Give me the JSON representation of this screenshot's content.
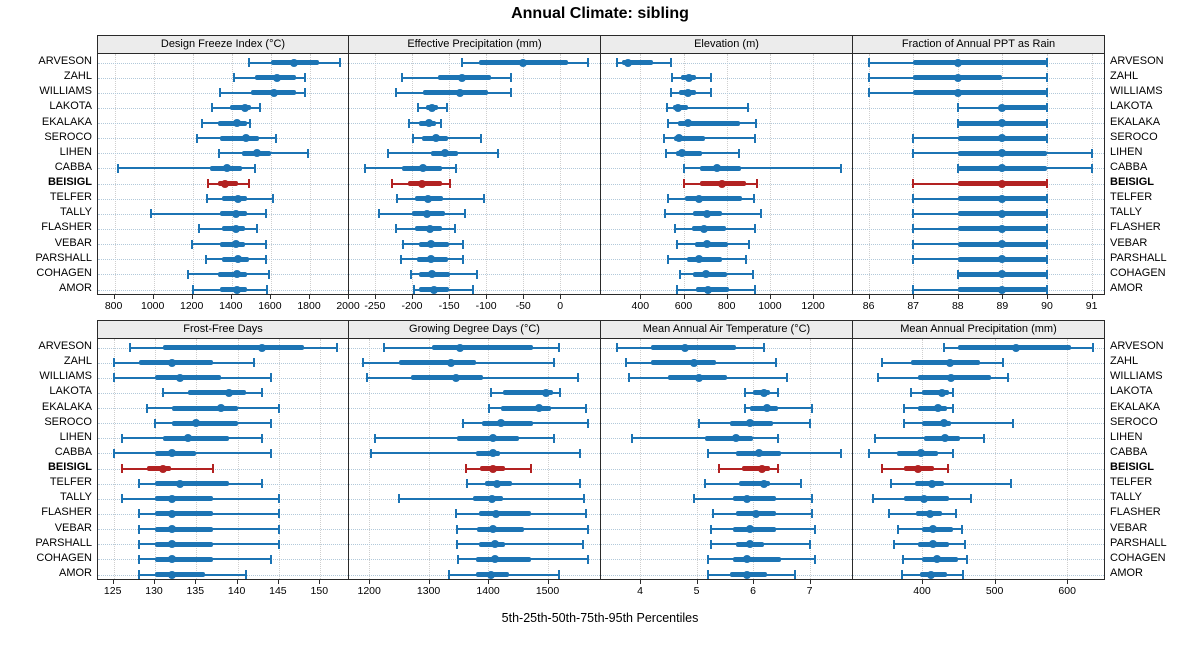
{
  "title": "Annual Climate: sibling",
  "footer_label": "5th-25th-50th-75th-95th Percentiles",
  "colors": {
    "series": "#1c74b4",
    "highlight": "#b22222",
    "strip_bg": "#ececec",
    "panel_border": "#2a2a2a",
    "gridline": "#cfcfcf",
    "row_guide": "#b2c9da"
  },
  "chart_data": {
    "type": "scatter",
    "subtype": "percentile-range-dotplot",
    "title": "Annual Climate: sibling",
    "xlabel": "5th-25th-50th-75th-95th Percentiles",
    "grid": true,
    "legend_position": "none",
    "percentiles": [
      5,
      25,
      50,
      75,
      95
    ],
    "highlight_station": "BEISIGL",
    "stations": [
      "ARVESON",
      "ZAHL",
      "WILLIAMS",
      "LAKOTA",
      "EKALAKA",
      "SEROCO",
      "LIHEN",
      "CABBA",
      "BEISIGL",
      "TELFER",
      "TALLY",
      "FLASHER",
      "VEBAR",
      "PARSHALL",
      "COHAGEN",
      "AMOR"
    ],
    "panels": [
      {
        "title": "Design Freeze Index (°C)",
        "row": 0,
        "col": 0,
        "ticks": [
          800,
          1000,
          1200,
          1400,
          1600,
          1800,
          2000
        ],
        "xlim": [
          715,
          2005
        ],
        "values": [
          [
            1490,
            1600,
            1720,
            1845,
            1955
          ],
          [
            1410,
            1520,
            1630,
            1730,
            1775
          ],
          [
            1340,
            1500,
            1615,
            1730,
            1775
          ],
          [
            1300,
            1390,
            1465,
            1500,
            1545
          ],
          [
            1245,
            1330,
            1425,
            1480,
            1495
          ],
          [
            1220,
            1340,
            1470,
            1540,
            1625
          ],
          [
            1335,
            1450,
            1530,
            1600,
            1790
          ],
          [
            815,
            1290,
            1375,
            1450,
            1520
          ],
          [
            1280,
            1330,
            1365,
            1430,
            1490
          ],
          [
            1275,
            1350,
            1430,
            1480,
            1610
          ],
          [
            985,
            1340,
            1420,
            1480,
            1575
          ],
          [
            1230,
            1350,
            1420,
            1470,
            1530
          ],
          [
            1195,
            1340,
            1420,
            1470,
            1575
          ],
          [
            1270,
            1350,
            1430,
            1490,
            1575
          ],
          [
            1175,
            1330,
            1425,
            1480,
            1590
          ],
          [
            1200,
            1340,
            1425,
            1480,
            1580
          ]
        ]
      },
      {
        "title": "Effective Precipitation (mm)",
        "row": 0,
        "col": 1,
        "ticks": [
          -250,
          -200,
          -150,
          -100,
          -50,
          0
        ],
        "xlim": [
          -285,
          55
        ],
        "values": [
          [
            -132,
            -110,
            -50,
            10,
            37
          ],
          [
            -214,
            -165,
            -133,
            -93,
            -66
          ],
          [
            -222,
            -185,
            -135,
            -97,
            -67
          ],
          [
            -192,
            -181,
            -173,
            -165,
            -153
          ],
          [
            -204,
            -190,
            -177,
            -168,
            -161
          ],
          [
            -199,
            -186,
            -168,
            -151,
            -107
          ],
          [
            -232,
            -174,
            -156,
            -138,
            -84
          ],
          [
            -263,
            -214,
            -185,
            -160,
            -141
          ],
          [
            -227,
            -206,
            -186,
            -159,
            -149
          ],
          [
            -220,
            -196,
            -178,
            -158,
            -103
          ],
          [
            -245,
            -200,
            -180,
            -155,
            -128
          ],
          [
            -222,
            -196,
            -176,
            -160,
            -142
          ],
          [
            -212,
            -190,
            -174,
            -150,
            -131
          ],
          [
            -215,
            -193,
            -174,
            -152,
            -131
          ],
          [
            -202,
            -190,
            -173,
            -148,
            -113
          ],
          [
            -198,
            -190,
            -171,
            -150,
            -118
          ]
        ]
      },
      {
        "title": "Elevation (m)",
        "row": 0,
        "col": 2,
        "ticks": [
          400,
          600,
          800,
          1000,
          1200
        ],
        "xlim": [
          218,
          1385
        ],
        "values": [
          [
            290,
            315,
            345,
            460,
            540
          ],
          [
            545,
            590,
            625,
            660,
            725
          ],
          [
            540,
            580,
            620,
            660,
            725
          ],
          [
            525,
            550,
            575,
            620,
            900
          ],
          [
            530,
            575,
            620,
            860,
            935
          ],
          [
            510,
            555,
            580,
            700,
            930
          ],
          [
            520,
            565,
            595,
            685,
            855
          ],
          [
            600,
            675,
            755,
            865,
            1330
          ],
          [
            600,
            675,
            780,
            890,
            940
          ],
          [
            530,
            605,
            670,
            870,
            925
          ],
          [
            515,
            645,
            710,
            780,
            960
          ],
          [
            560,
            640,
            695,
            795,
            930
          ],
          [
            570,
            655,
            710,
            805,
            905
          ],
          [
            530,
            615,
            670,
            780,
            890
          ],
          [
            585,
            645,
            705,
            800,
            920
          ],
          [
            570,
            660,
            715,
            810,
            930
          ]
        ]
      },
      {
        "title": "Fraction of Annual PPT as Rain",
        "row": 0,
        "col": 3,
        "ticks": [
          86,
          87,
          88,
          89,
          90,
          91
        ],
        "xlim": [
          85.65,
          91.3
        ],
        "values": [
          [
            86,
            87,
            88,
            90,
            90
          ],
          [
            86,
            87,
            88,
            89,
            90
          ],
          [
            86,
            87,
            88,
            90,
            90
          ],
          [
            88,
            89,
            89,
            90,
            90
          ],
          [
            88,
            88,
            89,
            90,
            90
          ],
          [
            87,
            88,
            89,
            90,
            90
          ],
          [
            87,
            88,
            89,
            90,
            91
          ],
          [
            88,
            88,
            89,
            90,
            91
          ],
          [
            87,
            88,
            89,
            90,
            90
          ],
          [
            87,
            88,
            89,
            90,
            90
          ],
          [
            87,
            88,
            89,
            90,
            90
          ],
          [
            87,
            88,
            89,
            90,
            90
          ],
          [
            87,
            88,
            89,
            90,
            90
          ],
          [
            87,
            88,
            89,
            90,
            90
          ],
          [
            88,
            88,
            89,
            90,
            90
          ],
          [
            87,
            88,
            89,
            90,
            90
          ]
        ]
      },
      {
        "title": "Frost-Free Days",
        "row": 1,
        "col": 0,
        "ticks": [
          125,
          130,
          135,
          140,
          145,
          150
        ],
        "xlim": [
          123.1,
          153.6
        ],
        "values": [
          [
            127,
            131,
            143,
            148,
            152
          ],
          [
            125,
            128,
            132,
            137,
            142
          ],
          [
            125,
            130,
            133,
            138,
            144
          ],
          [
            131,
            134,
            139,
            141,
            143
          ],
          [
            129,
            132,
            138,
            140,
            145
          ],
          [
            130,
            132,
            135,
            140,
            144
          ],
          [
            126,
            131,
            134,
            139,
            143
          ],
          [
            125,
            130,
            132,
            135,
            144
          ],
          [
            126,
            129,
            131,
            132,
            137
          ],
          [
            128,
            130,
            133,
            139,
            143
          ],
          [
            126,
            130,
            132,
            137,
            145
          ],
          [
            128,
            130,
            132,
            137,
            145
          ],
          [
            128,
            130,
            132,
            137,
            145
          ],
          [
            128,
            130,
            132,
            137,
            145
          ],
          [
            128,
            130,
            132,
            137,
            144
          ],
          [
            128,
            130,
            132,
            136,
            141
          ]
        ]
      },
      {
        "title": "Growing Degree Days (°C)",
        "row": 1,
        "col": 1,
        "ticks": [
          1200,
          1300,
          1400,
          1500
        ],
        "xlim": [
          1166,
          1590
        ],
        "values": [
          [
            1225,
            1305,
            1352,
            1475,
            1520
          ],
          [
            1190,
            1250,
            1337,
            1380,
            1511
          ],
          [
            1197,
            1270,
            1346,
            1391,
            1551
          ],
          [
            1404,
            1425,
            1497,
            1510,
            1521
          ],
          [
            1401,
            1421,
            1486,
            1506,
            1565
          ],
          [
            1358,
            1390,
            1422,
            1476,
            1568
          ],
          [
            1210,
            1348,
            1408,
            1452,
            1511
          ],
          [
            1203,
            1380,
            1408,
            1420,
            1555
          ],
          [
            1363,
            1387,
            1408,
            1428,
            1472
          ],
          [
            1365,
            1395,
            1415,
            1440,
            1555
          ],
          [
            1250,
            1375,
            1407,
            1425,
            1562
          ],
          [
            1346,
            1384,
            1413,
            1472,
            1565
          ],
          [
            1348,
            1382,
            1408,
            1460,
            1568
          ],
          [
            1348,
            1384,
            1412,
            1428,
            1559
          ],
          [
            1350,
            1380,
            1412,
            1472,
            1568
          ],
          [
            1335,
            1380,
            1405,
            1435,
            1520
          ]
        ]
      },
      {
        "title": "Mean Annual Air Temperature (°C)",
        "row": 1,
        "col": 2,
        "ticks": [
          4,
          5,
          6,
          7
        ],
        "xlim": [
          3.31,
          7.77
        ],
        "values": [
          [
            3.6,
            4.2,
            4.8,
            5.7,
            6.2
          ],
          [
            3.75,
            4.2,
            4.95,
            5.35,
            6.4
          ],
          [
            3.8,
            4.5,
            5.05,
            5.55,
            6.6
          ],
          [
            5.85,
            6.0,
            6.2,
            6.3,
            6.45
          ],
          [
            5.85,
            5.95,
            6.25,
            6.45,
            7.05
          ],
          [
            5.05,
            5.6,
            5.95,
            6.35,
            7.0
          ],
          [
            3.85,
            5.15,
            5.7,
            6.0,
            6.45
          ],
          [
            5.2,
            5.7,
            6.1,
            6.5,
            7.55
          ],
          [
            5.4,
            5.8,
            6.15,
            6.3,
            6.45
          ],
          [
            5.15,
            5.75,
            6.2,
            6.3,
            6.85
          ],
          [
            4.95,
            5.65,
            5.9,
            6.4,
            7.05
          ],
          [
            5.3,
            5.7,
            6.05,
            6.4,
            7.05
          ],
          [
            5.25,
            5.65,
            5.95,
            6.4,
            7.1
          ],
          [
            5.25,
            5.7,
            5.95,
            6.2,
            7.0
          ],
          [
            5.2,
            5.65,
            5.9,
            6.5,
            7.1
          ],
          [
            5.2,
            5.6,
            5.9,
            6.25,
            6.75
          ]
        ]
      },
      {
        "title": "Mean Annual Precipitation (mm)",
        "row": 1,
        "col": 3,
        "ticks": [
          400,
          500,
          600
        ],
        "xlim": [
          305,
          652
        ],
        "values": [
          [
            430,
            450,
            530,
            605,
            635
          ],
          [
            345,
            385,
            438,
            480,
            512
          ],
          [
            340,
            395,
            440,
            495,
            518
          ],
          [
            385,
            400,
            428,
            437,
            442
          ],
          [
            375,
            395,
            422,
            435,
            442
          ],
          [
            375,
            400,
            430,
            440,
            525
          ],
          [
            335,
            403,
            431,
            453,
            485
          ],
          [
            327,
            365,
            398,
            422,
            442
          ],
          [
            345,
            375,
            395,
            416,
            436
          ],
          [
            357,
            390,
            414,
            430,
            523
          ],
          [
            332,
            375,
            403,
            437,
            468
          ],
          [
            354,
            392,
            411,
            427,
            447
          ],
          [
            367,
            400,
            415,
            443,
            455
          ],
          [
            361,
            394,
            415,
            437,
            459
          ],
          [
            374,
            400,
            420,
            449,
            462
          ],
          [
            372,
            397,
            413,
            434,
            457
          ]
        ]
      }
    ]
  }
}
